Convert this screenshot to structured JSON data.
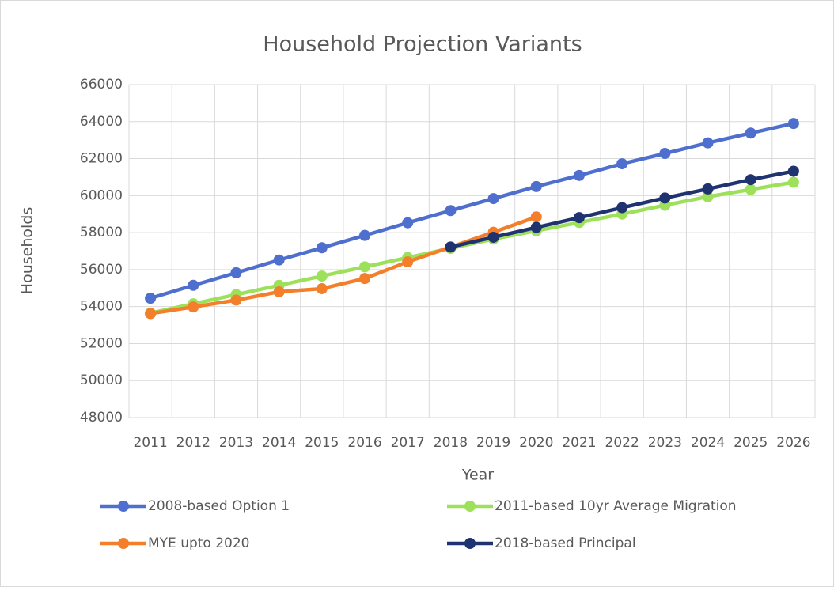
{
  "chart_data": {
    "type": "line",
    "title": "Household Projection Variants",
    "x_label": "Year",
    "y_label": "Households",
    "categories": [
      "2011",
      "2012",
      "2013",
      "2014",
      "2015",
      "2016",
      "2017",
      "2018",
      "2019",
      "2020",
      "2021",
      "2022",
      "2023",
      "2024",
      "2025",
      "2026"
    ],
    "series": [
      {
        "name": "2008-based Option 1",
        "color": "#4f6fcf",
        "values": [
          54450,
          55150,
          55830,
          56520,
          57180,
          57850,
          58530,
          59190,
          59840,
          60490,
          61090,
          61720,
          62280,
          62850,
          63380,
          63900
        ]
      },
      {
        "name": "2011-based 10yr Average Migration",
        "color": "#9de05a",
        "values": [
          53650,
          54150,
          54650,
          55150,
          55650,
          56150,
          56650,
          57150,
          57650,
          58100,
          58550,
          59000,
          59480,
          59940,
          60330,
          60720
        ]
      },
      {
        "name": "MYE upto 2020",
        "color": "#f47f2a",
        "values": [
          53620,
          53980,
          54350,
          54800,
          54970,
          55520,
          56420,
          57220,
          58020,
          58850,
          null,
          null,
          null,
          null,
          null,
          null
        ]
      },
      {
        "name": "2018-based Principal",
        "color": "#1f3370",
        "values": [
          null,
          null,
          null,
          null,
          null,
          null,
          null,
          57220,
          57750,
          58280,
          58810,
          59350,
          59870,
          60360,
          60860,
          61320
        ]
      }
    ],
    "ylim": [
      48000,
      66000
    ],
    "yticks": [
      48000,
      50000,
      52000,
      54000,
      56000,
      58000,
      60000,
      62000,
      64000,
      66000
    ],
    "grid": true,
    "legend": "bottom"
  }
}
